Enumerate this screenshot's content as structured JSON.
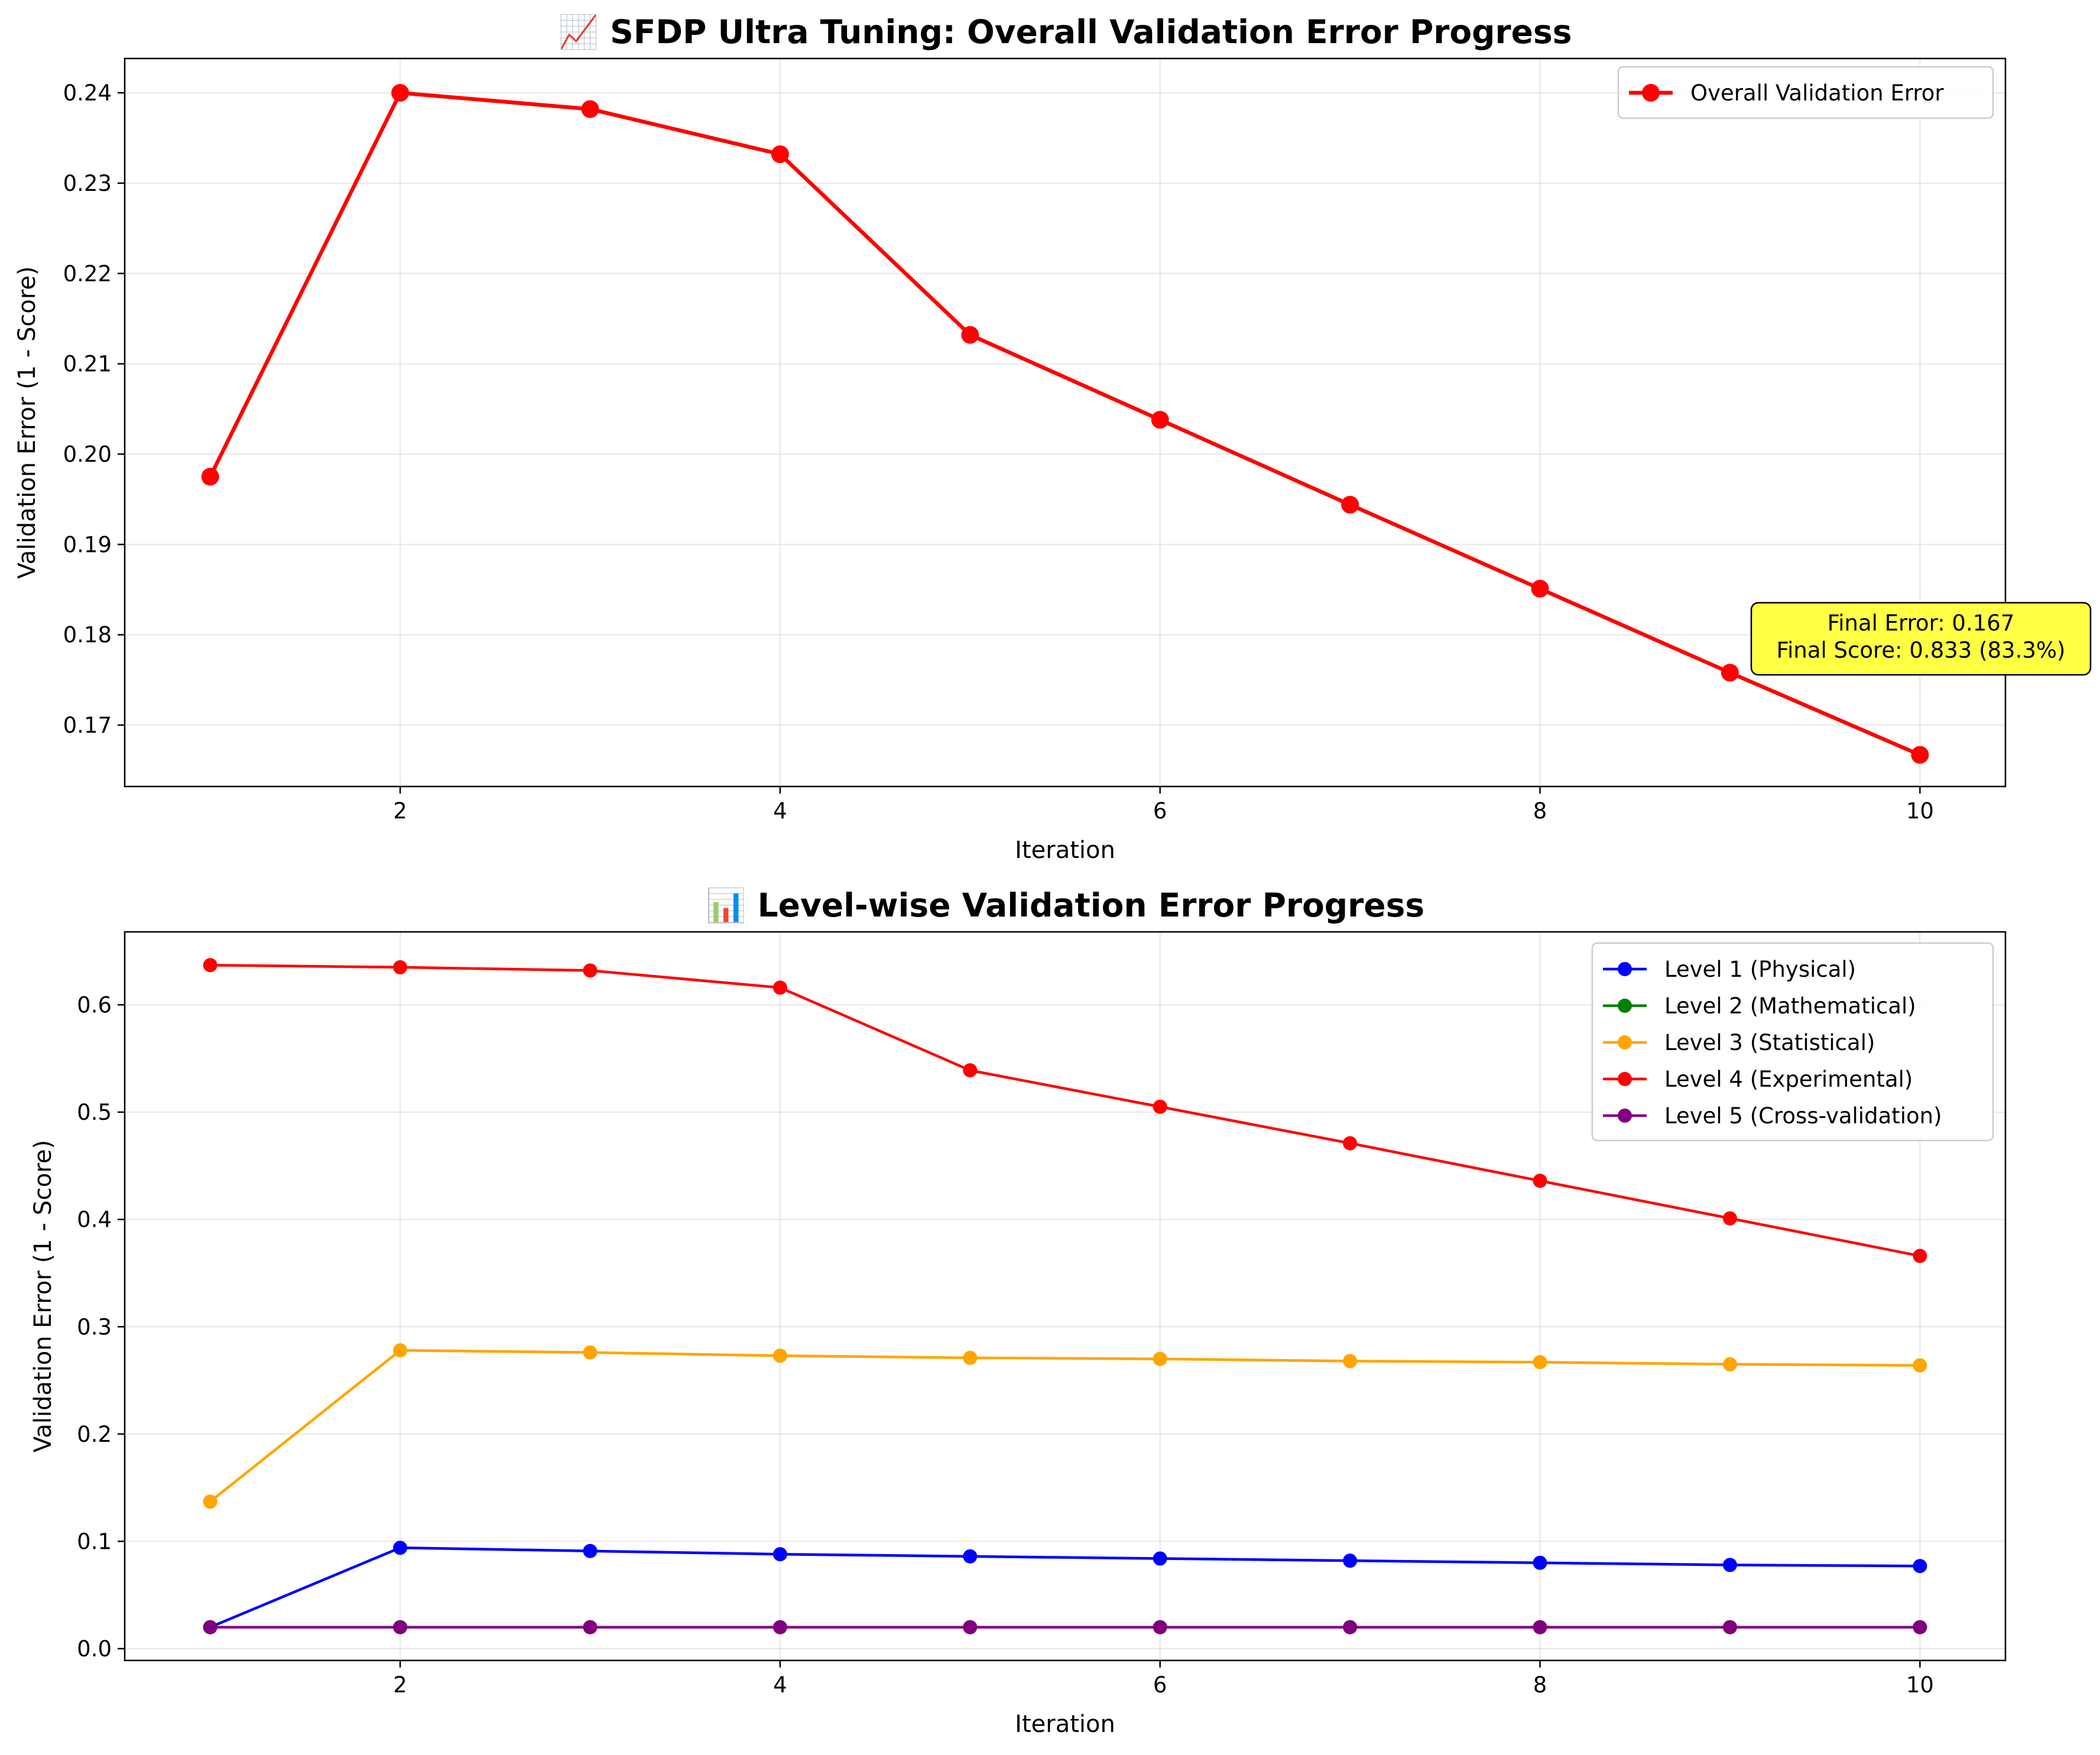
{
  "chart_data": [
    {
      "type": "line",
      "title": "📈 SFDP Ultra Tuning: Overall Validation Error Progress",
      "xlabel": "Iteration",
      "ylabel": "Validation Error (1 - Score)",
      "xlim": [
        0.55,
        10.45
      ],
      "ylim": [
        0.1632,
        0.2438
      ],
      "x_ticks": [
        2,
        4,
        6,
        8,
        10
      ],
      "y_ticks": [
        0.17,
        0.18,
        0.19,
        0.2,
        0.21,
        0.22,
        0.23,
        0.24
      ],
      "y_tick_labels": [
        "0.17",
        "0.18",
        "0.19",
        "0.20",
        "0.21",
        "0.22",
        "0.23",
        "0.24"
      ],
      "grid": true,
      "legend_position": "upper-right",
      "x": [
        1,
        2,
        3,
        4,
        5,
        6,
        7,
        8,
        9,
        10
      ],
      "series": [
        {
          "name": "Overall Validation Error",
          "color": "#ff0000",
          "values": [
            0.1975,
            0.24,
            0.2382,
            0.2332,
            0.2132,
            0.2038,
            0.1944,
            0.1851,
            0.1758,
            0.1667
          ]
        }
      ],
      "annotation": {
        "lines": [
          "Final Error: 0.167",
          "Final Score: 0.833 (83.3%)"
        ],
        "background": "#ffff44",
        "anchor_x": 10,
        "anchor_y": 0.1782
      }
    },
    {
      "type": "line",
      "title": "📊 Level-wise Validation Error Progress",
      "xlabel": "Iteration",
      "ylabel": "Validation Error (1 - Score)",
      "xlim": [
        0.55,
        10.45
      ],
      "ylim": [
        -0.011,
        0.668
      ],
      "x_ticks": [
        2,
        4,
        6,
        8,
        10
      ],
      "y_ticks": [
        0.0,
        0.1,
        0.2,
        0.3,
        0.4,
        0.5,
        0.6
      ],
      "y_tick_labels": [
        "0.0",
        "0.1",
        "0.2",
        "0.3",
        "0.4",
        "0.5",
        "0.6"
      ],
      "grid": true,
      "legend_position": "upper-right",
      "x": [
        1,
        2,
        3,
        4,
        5,
        6,
        7,
        8,
        9,
        10
      ],
      "series": [
        {
          "name": "Level 1 (Physical)",
          "color": "#0000ff",
          "values": [
            0.02,
            0.094,
            0.091,
            0.088,
            0.086,
            0.084,
            0.082,
            0.08,
            0.078,
            0.077
          ]
        },
        {
          "name": "Level 2 (Mathematical)",
          "color": "#008000",
          "values": [
            0.02,
            0.02,
            0.02,
            0.02,
            0.02,
            0.02,
            0.02,
            0.02,
            0.02,
            0.02
          ]
        },
        {
          "name": "Level 3 (Statistical)",
          "color": "#ffa500",
          "values": [
            0.137,
            0.278,
            0.276,
            0.273,
            0.271,
            0.27,
            0.268,
            0.267,
            0.265,
            0.264
          ]
        },
        {
          "name": "Level 4 (Experimental)",
          "color": "#ff0000",
          "values": [
            0.637,
            0.635,
            0.632,
            0.616,
            0.539,
            0.505,
            0.471,
            0.436,
            0.401,
            0.366
          ]
        },
        {
          "name": "Level 5 (Cross-validation)",
          "color": "#800080",
          "values": [
            0.02,
            0.02,
            0.02,
            0.02,
            0.02,
            0.02,
            0.02,
            0.02,
            0.02,
            0.02
          ]
        }
      ]
    }
  ]
}
